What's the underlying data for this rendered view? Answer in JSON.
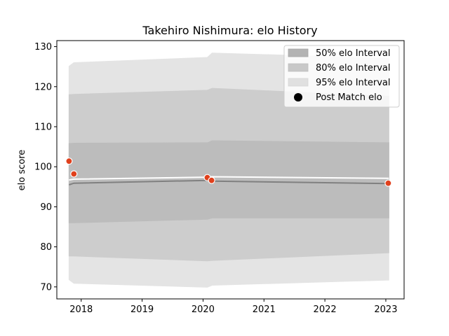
{
  "chart_data": {
    "type": "line",
    "title": "Takehiro Nishimura: elo History",
    "xlabel": "",
    "ylabel": "elo score",
    "xlim": [
      2017.6,
      2023.3
    ],
    "ylim": [
      67,
      131.5
    ],
    "x_ticks": [
      2018,
      2019,
      2020,
      2021,
      2022,
      2023
    ],
    "x_tick_labels": [
      "2018",
      "2019",
      "2020",
      "2021",
      "2022",
      "2023"
    ],
    "y_ticks": [
      70,
      80,
      90,
      100,
      110,
      120,
      130
    ],
    "y_tick_labels": [
      "70",
      "80",
      "90",
      "100",
      "110",
      "120",
      "130"
    ],
    "mean_line": {
      "x": [
        2017.8,
        2017.88,
        2020.07,
        2020.15,
        2023.05
      ],
      "y": [
        95.5,
        95.9,
        96.6,
        96.4,
        95.8
      ]
    },
    "white_line": {
      "x": [
        2017.8,
        2017.88,
        2020.07,
        2020.15,
        2023.05
      ],
      "y": [
        96.7,
        96.9,
        97.4,
        97.5,
        97.1
      ]
    },
    "intervals": [
      {
        "name": "95% elo Interval",
        "color": "#e4e4e4",
        "x": [
          2017.8,
          2017.88,
          2020.07,
          2020.15,
          2023.05
        ],
        "lower": [
          71.8,
          70.9,
          69.9,
          70.4,
          71.7
        ],
        "upper": [
          125.1,
          126.0,
          127.3,
          128.4,
          127.1
        ]
      },
      {
        "name": "80% elo Interval",
        "color": "#cdcdcd",
        "x": [
          2017.8,
          2017.88,
          2020.07,
          2020.15,
          2023.05
        ],
        "lower": [
          77.7,
          77.7,
          76.5,
          76.6,
          78.5
        ],
        "upper": [
          118.0,
          118.1,
          119.1,
          119.6,
          117.6
        ]
      },
      {
        "name": "50% elo Interval",
        "color": "#bcbcbc",
        "x": [
          2017.8,
          2017.88,
          2020.07,
          2020.15,
          2023.05
        ],
        "lower": [
          86.0,
          86.0,
          86.9,
          87.2,
          87.2
        ],
        "upper": [
          105.8,
          105.9,
          106.0,
          106.5,
          106.0
        ]
      }
    ],
    "points": {
      "name": "Post Match elo",
      "color": "#e0401c",
      "x": [
        2017.8,
        2017.88,
        2020.07,
        2020.14,
        2023.04
      ],
      "y": [
        101.4,
        98.2,
        97.3,
        96.6,
        95.9
      ]
    },
    "legend": {
      "position": "top-right",
      "entries": [
        {
          "label": "50% elo Interval",
          "swatch": "#b3b3b3"
        },
        {
          "label": "80% elo Interval",
          "swatch": "#c8c8c8"
        },
        {
          "label": "95% elo Interval",
          "swatch": "#e0e0e0"
        },
        {
          "label": "Post Match elo",
          "swatch": "#000000"
        }
      ]
    }
  }
}
